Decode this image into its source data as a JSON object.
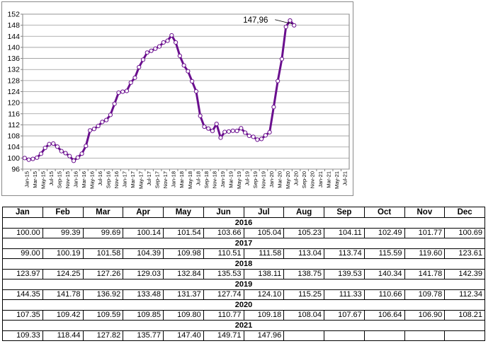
{
  "chart_data": {
    "type": "line",
    "title": "",
    "xlabel": "",
    "ylabel": "",
    "ylim": [
      96,
      152
    ],
    "yticks": [
      96,
      100,
      104,
      108,
      112,
      116,
      120,
      124,
      128,
      132,
      136,
      140,
      144,
      148,
      152
    ],
    "grid": true,
    "line_color": "#6a0f8e",
    "marker_fill": "#ffffff",
    "x_tick_labels": [
      "Jan-15",
      "Mar-15",
      "May-15",
      "Jul-15",
      "Sep-15",
      "Nov-15",
      "Jan-16",
      "Mar-16",
      "May-16",
      "Jul-16",
      "Sep-16",
      "Nov-16",
      "Jan-17",
      "Mar-17",
      "May-17",
      "Jul-17",
      "Sep-17",
      "Nov-17",
      "Jan-18",
      "Mar-18",
      "May-18",
      "Jul-18",
      "Sep-18",
      "Nov-18",
      "Jan-19",
      "Mar-19",
      "May-19",
      "Jul-19",
      "Sep-19",
      "Nov-19",
      "Jan-20",
      "Mar-20",
      "May-20",
      "Jul-20",
      "Sep-20",
      "Nov-20",
      "Jan-21",
      "Mar-21",
      "May-21",
      "Jul-21"
    ],
    "annotation": {
      "text": "147,96",
      "x_index": 30
    },
    "values": [
      100.0,
      99.39,
      99.69,
      100.14,
      101.54,
      103.66,
      105.04,
      105.23,
      104.11,
      102.49,
      101.77,
      100.69,
      99.0,
      100.19,
      101.58,
      104.39,
      109.98,
      110.51,
      111.58,
      113.04,
      113.74,
      115.59,
      119.6,
      123.61,
      123.97,
      124.25,
      127.26,
      129.03,
      132.84,
      135.53,
      138.11,
      138.75,
      139.53,
      140.34,
      141.78,
      142.39,
      144.35,
      141.78,
      136.92,
      133.48,
      131.37,
      127.74,
      124.1,
      115.25,
      111.33,
      110.66,
      109.78,
      112.34,
      107.35,
      109.42,
      109.59,
      109.85,
      109.8,
      110.77,
      109.18,
      108.04,
      107.67,
      106.64,
      106.9,
      108.21,
      109.33,
      118.44,
      127.82,
      135.77,
      147.4,
      149.71,
      147.96
    ]
  },
  "table": {
    "months": [
      "Jan",
      "Feb",
      "Mar",
      "Apr",
      "May",
      "Jun",
      "Jul",
      "Aug",
      "Sep",
      "Oct",
      "Nov",
      "Dec"
    ],
    "years": [
      {
        "year": "2016",
        "values": [
          "100.00",
          "99.39",
          "99.69",
          "100.14",
          "101.54",
          "103.66",
          "105.04",
          "105.23",
          "104.11",
          "102.49",
          "101.77",
          "100.69"
        ]
      },
      {
        "year": "2017",
        "values": [
          "99.00",
          "100.19",
          "101.58",
          "104.39",
          "109.98",
          "110.51",
          "111.58",
          "113.04",
          "113.74",
          "115.59",
          "119.60",
          "123.61"
        ]
      },
      {
        "year": "2018",
        "values": [
          "123.97",
          "124.25",
          "127.26",
          "129.03",
          "132.84",
          "135.53",
          "138.11",
          "138.75",
          "139.53",
          "140.34",
          "141.78",
          "142.39"
        ]
      },
      {
        "year": "2019",
        "values": [
          "144.35",
          "141.78",
          "136.92",
          "133.48",
          "131.37",
          "127.74",
          "124.10",
          "115.25",
          "111.33",
          "110.66",
          "109.78",
          "112.34"
        ]
      },
      {
        "year": "2020",
        "values": [
          "107.35",
          "109.42",
          "109.59",
          "109.85",
          "109.80",
          "110.77",
          "109.18",
          "108.04",
          "107.67",
          "106.64",
          "106.90",
          "108.21"
        ]
      },
      {
        "year": "2021",
        "values": [
          "109.33",
          "118.44",
          "127.82",
          "135.77",
          "147.40",
          "149.71",
          "147.96",
          "",
          "",
          "",
          "",
          ""
        ]
      }
    ]
  }
}
